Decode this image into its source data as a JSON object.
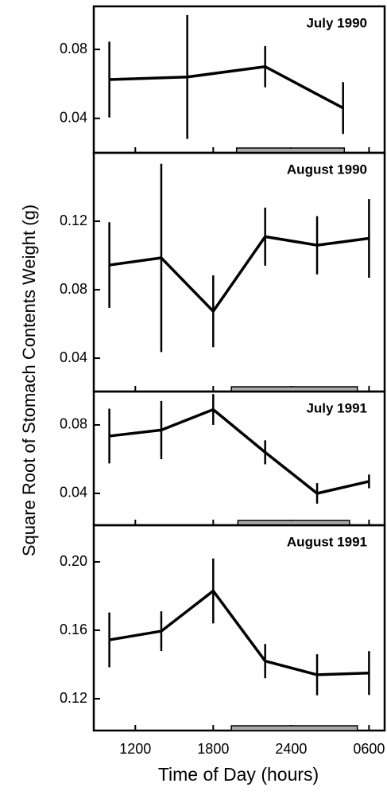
{
  "ylabel": "Square Root of Stomach Contents Weight (g)",
  "xlabel": "Time of Day (hours)",
  "chart_data": [
    {
      "type": "line",
      "title": "July 1990",
      "color": "#000000",
      "x": [
        10,
        16,
        22,
        28
      ],
      "values": [
        0.0625,
        0.064,
        0.07,
        0.046
      ],
      "errors": [
        0.022,
        0.036,
        0.012,
        0.015
      ],
      "night": [
        19.8,
        28.1
      ],
      "xlim": [
        8.8,
        31.2
      ],
      "xticks": [
        {
          "value": 12,
          "label": "1200"
        },
        {
          "value": 18,
          "label": "1800"
        },
        {
          "value": 24,
          "label": "2400"
        },
        {
          "value": 30,
          "label": "0600"
        }
      ],
      "ylim": [
        0.02,
        0.105
      ],
      "yticks": [
        {
          "value": 0.04,
          "label": "0.04"
        },
        {
          "value": 0.08,
          "label": "0.08"
        }
      ]
    },
    {
      "type": "line",
      "title": "August 1990",
      "color": "#000000",
      "x": [
        10,
        14,
        18,
        22,
        26,
        30
      ],
      "values": [
        0.0944,
        0.0986,
        0.0674,
        0.111,
        0.106,
        0.11
      ],
      "errors": [
        0.025,
        0.055,
        0.021,
        0.017,
        0.017,
        0.023
      ],
      "night": [
        19.4,
        29.1
      ],
      "xlim": [
        8.8,
        31.2
      ],
      "xticks": [
        {
          "value": 12,
          "label": "1200"
        },
        {
          "value": 18,
          "label": "1800"
        },
        {
          "value": 24,
          "label": "2400"
        },
        {
          "value": 30,
          "label": "0600"
        }
      ],
      "ylim": [
        0.0205,
        0.16
      ],
      "yticks": [
        {
          "value": 0.04,
          "label": "0.04"
        },
        {
          "value": 0.08,
          "label": "0.08"
        },
        {
          "value": 0.12,
          "label": "0.12"
        }
      ]
    },
    {
      "type": "line",
      "title": "July 1991",
      "color": "#000000",
      "x": [
        10,
        14,
        18,
        22,
        26,
        30
      ],
      "values": [
        0.0735,
        0.077,
        0.089,
        0.064,
        0.04,
        0.047
      ],
      "errors": [
        0.016,
        0.017,
        0.009,
        0.007,
        0.006,
        0.004
      ],
      "night": [
        19.9,
        28.5
      ],
      "xlim": [
        8.8,
        31.2
      ],
      "xticks": [
        {
          "value": 12,
          "label": "1200"
        },
        {
          "value": 18,
          "label": "1800"
        },
        {
          "value": 24,
          "label": "2400"
        },
        {
          "value": 30,
          "label": "0600"
        }
      ],
      "ylim": [
        0.0214,
        0.0995
      ],
      "yticks": [
        {
          "value": 0.04,
          "label": "0.04"
        },
        {
          "value": 0.08,
          "label": "0.08"
        }
      ]
    },
    {
      "type": "line",
      "title": "August 1991",
      "color": "#000000",
      "x": [
        10,
        14,
        18,
        22,
        26,
        30
      ],
      "values": [
        0.1544,
        0.1595,
        0.183,
        0.142,
        0.134,
        0.135
      ],
      "errors": [
        0.016,
        0.0116,
        0.019,
        0.01,
        0.012,
        0.0128
      ],
      "night": [
        19.4,
        29.1
      ],
      "xlim": [
        8.8,
        31.2
      ],
      "xticks": [
        {
          "value": 12,
          "label": "1200"
        },
        {
          "value": 18,
          "label": "1800"
        },
        {
          "value": 24,
          "label": "2400"
        },
        {
          "value": 30,
          "label": "0600"
        }
      ],
      "ylim": [
        0.1014,
        0.2214
      ],
      "yticks": [
        {
          "value": 0.12,
          "label": "0.12"
        },
        {
          "value": 0.16,
          "label": "0.16"
        },
        {
          "value": 0.2,
          "label": "0.20"
        }
      ]
    }
  ]
}
